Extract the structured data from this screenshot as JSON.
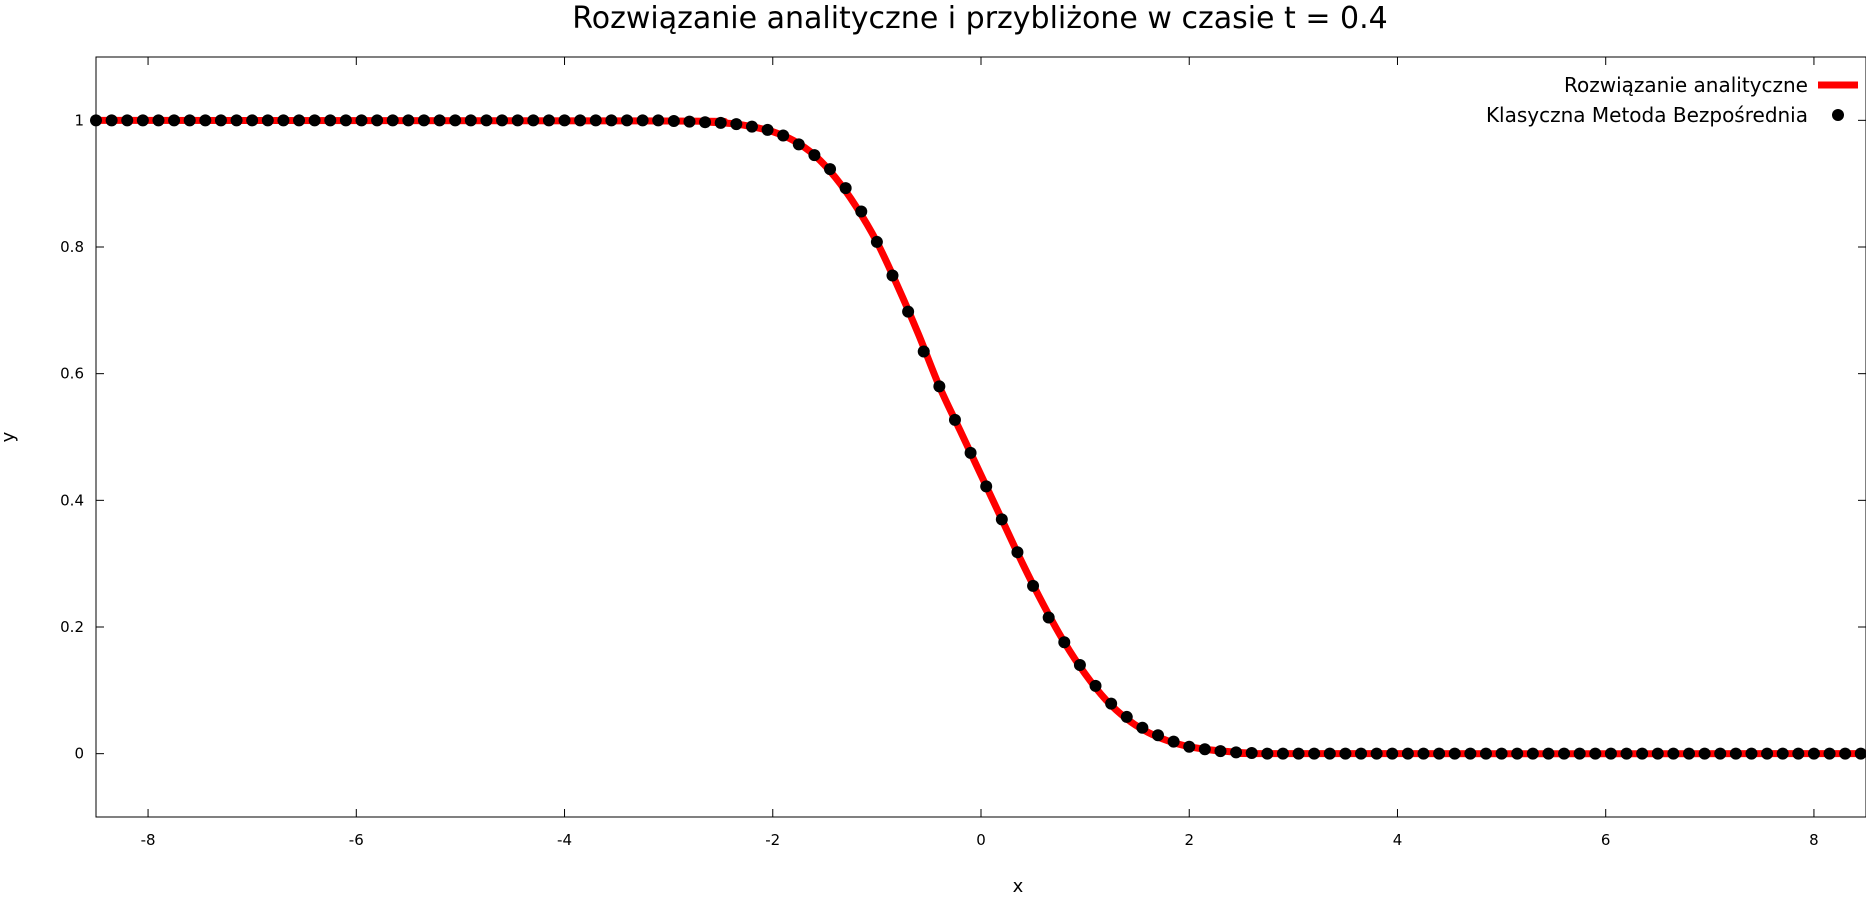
{
  "chart_data": {
    "type": "line",
    "title": "Rozwiązanie analityczne i przybliżone w czasie t = 0.4",
    "xlabel": "x",
    "ylabel": "y",
    "xlim": [
      -8.5,
      8.5
    ],
    "ylim": [
      -0.1,
      1.1
    ],
    "x_ticks": [
      "-8",
      "-6",
      "-4",
      "-2",
      "0",
      "2",
      "4",
      "6",
      "8"
    ],
    "x_tick_values": [
      -8,
      -6,
      -4,
      -2,
      0,
      2,
      4,
      6,
      8
    ],
    "y_ticks": [
      "0",
      "0.2",
      "0.4",
      "0.6",
      "0.8",
      "1"
    ],
    "y_tick_values": [
      0,
      0.2,
      0.4,
      0.6,
      0.8,
      1
    ],
    "legend_position": "top-right",
    "series": [
      {
        "name": "Rozwiązanie analityczne",
        "kind": "line",
        "color": "#ff0000",
        "x": [
          -8.5,
          -3.0,
          -2.6,
          -2.4,
          -2.2,
          -2.0,
          -1.8,
          -1.6,
          -1.4,
          -1.2,
          -1.0,
          -0.8,
          -0.6,
          -0.4,
          -0.2,
          0.0,
          0.2,
          0.4,
          0.6,
          0.8,
          1.0,
          1.2,
          1.4,
          1.6,
          1.8,
          2.0,
          2.2,
          2.4,
          2.6,
          3.0,
          8.5
        ],
        "y": [
          1.0,
          0.999,
          0.997,
          0.995,
          0.99,
          0.982,
          0.968,
          0.945,
          0.91,
          0.864,
          0.808,
          0.738,
          0.662,
          0.58,
          0.51,
          0.44,
          0.37,
          0.3,
          0.235,
          0.176,
          0.126,
          0.085,
          0.055,
          0.034,
          0.02,
          0.011,
          0.006,
          0.003,
          0.001,
          0.0,
          0.0
        ]
      },
      {
        "name": "Klasyczna Metoda Bezpośrednia",
        "kind": "points",
        "color": "#000000",
        "x": [
          -8.5,
          -8.35,
          -8.2,
          -8.05,
          -7.9,
          -7.75,
          -7.6,
          -7.45,
          -7.3,
          -7.15,
          -7.0,
          -6.85,
          -6.7,
          -6.55,
          -6.4,
          -6.25,
          -6.1,
          -5.95,
          -5.8,
          -5.65,
          -5.5,
          -5.35,
          -5.2,
          -5.05,
          -4.9,
          -4.75,
          -4.6,
          -4.45,
          -4.3,
          -4.15,
          -4.0,
          -3.85,
          -3.7,
          -3.55,
          -3.4,
          -3.25,
          -3.1,
          -2.95,
          -2.8,
          -2.65,
          -2.5,
          -2.35,
          -2.2,
          -2.05,
          -1.9,
          -1.75,
          -1.6,
          -1.45,
          -1.3,
          -1.15,
          -1.0,
          -0.85,
          -0.7,
          -0.55,
          -0.4,
          -0.25,
          -0.1,
          0.05,
          0.2,
          0.35,
          0.5,
          0.65,
          0.8,
          0.95,
          1.1,
          1.25,
          1.4,
          1.55,
          1.7,
          1.85,
          2.0,
          2.15,
          2.3,
          2.45,
          2.6,
          2.75,
          2.9,
          3.05,
          3.2,
          3.35,
          3.5,
          3.65,
          3.8,
          3.95,
          4.1,
          4.25,
          4.4,
          4.55,
          4.7,
          4.85,
          5.0,
          5.15,
          5.3,
          5.45,
          5.6,
          5.75,
          5.9,
          6.05,
          6.2,
          6.35,
          6.5,
          6.65,
          6.8,
          6.95,
          7.1,
          7.25,
          7.4,
          7.55,
          7.7,
          7.85,
          8.0,
          8.15,
          8.3,
          8.45
        ],
        "y": [
          1.0,
          1.0,
          1.0,
          1.0,
          1.0,
          1.0,
          1.0,
          1.0,
          1.0,
          1.0,
          1.0,
          1.0,
          1.0,
          1.0,
          1.0,
          1.0,
          1.0,
          1.0,
          1.0,
          1.0,
          1.0,
          1.0,
          1.0,
          1.0,
          1.0,
          1.0,
          1.0,
          1.0,
          1.0,
          1.0,
          1.0,
          1.0,
          1.0,
          1.0,
          1.0,
          1.0,
          1.0,
          0.999,
          0.998,
          0.997,
          0.996,
          0.994,
          0.99,
          0.985,
          0.976,
          0.962,
          0.945,
          0.923,
          0.893,
          0.856,
          0.808,
          0.755,
          0.698,
          0.635,
          0.58,
          0.527,
          0.475,
          0.422,
          0.37,
          0.318,
          0.265,
          0.215,
          0.176,
          0.14,
          0.107,
          0.079,
          0.058,
          0.041,
          0.029,
          0.019,
          0.011,
          0.007,
          0.004,
          0.002,
          0.001,
          0.0,
          0.0,
          0.0,
          0.0,
          0.0,
          0.0,
          0.0,
          0.0,
          0.0,
          0.0,
          0.0,
          0.0,
          0.0,
          0.0,
          0.0,
          0.0,
          0.0,
          0.0,
          0.0,
          0.0,
          0.0,
          0.0,
          0.0,
          0.0,
          0.0,
          0.0,
          0.0,
          0.0,
          0.0,
          0.0,
          0.0,
          0.0,
          0.0,
          0.0,
          0.0,
          0.0,
          0.0,
          0.0,
          0.0
        ]
      }
    ]
  }
}
